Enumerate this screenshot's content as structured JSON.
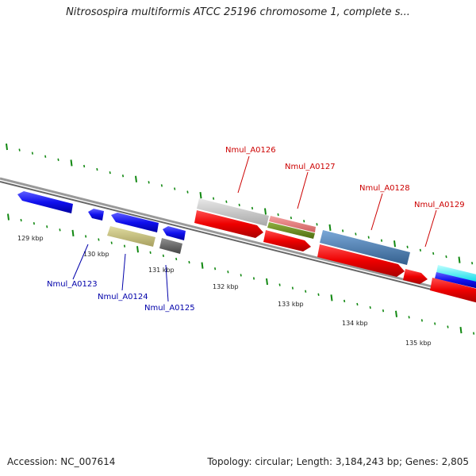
{
  "title": "Nitrosospira multiformis ATCC 25196 chromosome 1, complete s...",
  "footer": {
    "accession": "Accession: NC_007614",
    "summary": "Topology: circular; Length: 3,184,243 bp; Genes: 2,805"
  },
  "scale": {
    "unit": "kbp",
    "ticks": [
      {
        "label": "129 kbp"
      },
      {
        "label": "130 kbp"
      },
      {
        "label": "131 kbp"
      },
      {
        "label": "132 kbp"
      },
      {
        "label": "133 kbp"
      },
      {
        "label": "134 kbp"
      },
      {
        "label": "135 kbp"
      }
    ]
  },
  "genes": {
    "top": [
      {
        "name": "Nmul_A0126",
        "color": "#cc0000"
      },
      {
        "name": "Nmul_A0127",
        "color": "#cc0000"
      },
      {
        "name": "Nmul_A0128",
        "color": "#cc0000"
      },
      {
        "name": "Nmul_A0129",
        "color": "#cc0000"
      }
    ],
    "bottom": [
      {
        "name": "Nmul_A0123",
        "color": "#0000aa"
      },
      {
        "name": "Nmul_A0124",
        "color": "#0000aa"
      },
      {
        "name": "Nmul_A0125",
        "color": "#0000aa"
      }
    ]
  },
  "colors": {
    "forward_gene": "#ee0000",
    "reverse_gene": "#1a1aee",
    "tick": "#118811",
    "backbone": "#888888"
  }
}
